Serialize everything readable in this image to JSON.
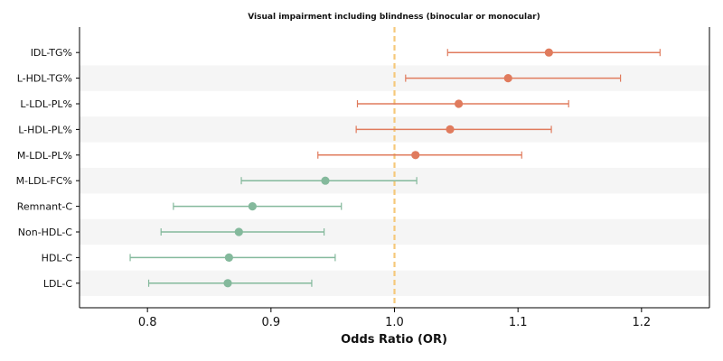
{
  "chart_data": {
    "type": "forest",
    "title": "Visual impairment including blindness (binocular or monocular)",
    "xlabel": "Odds Ratio (OR)",
    "xlim": [
      0.745,
      1.255
    ],
    "xticks": [
      0.8,
      0.9,
      1.0,
      1.1,
      1.2
    ],
    "xtick_labels": [
      "0.8",
      "0.9",
      "1.0",
      "1.1",
      "1.2"
    ],
    "reference_line": 1.0,
    "reference_color": "#f5c87a",
    "colors": {
      "positive": "#e07b5d",
      "negative": "#84b99c",
      "band": "#f5f5f5"
    },
    "rows": [
      {
        "label": "IDL-TG%",
        "or": 1.125,
        "lo": 1.043,
        "hi": 1.215
      },
      {
        "label": "L-HDL-TG%",
        "or": 1.092,
        "lo": 1.009,
        "hi": 1.183
      },
      {
        "label": "L-LDL-PL%",
        "or": 1.052,
        "lo": 0.97,
        "hi": 1.141
      },
      {
        "label": "L-HDL-PL%",
        "or": 1.045,
        "lo": 0.969,
        "hi": 1.127
      },
      {
        "label": "M-LDL-PL%",
        "or": 1.017,
        "lo": 0.938,
        "hi": 1.103
      },
      {
        "label": "M-LDL-FC%",
        "or": 0.944,
        "lo": 0.876,
        "hi": 1.018
      },
      {
        "label": "Remnant-C",
        "or": 0.885,
        "lo": 0.821,
        "hi": 0.957
      },
      {
        "label": "Non-HDL-C",
        "or": 0.874,
        "lo": 0.811,
        "hi": 0.943
      },
      {
        "label": "HDL-C",
        "or": 0.866,
        "lo": 0.786,
        "hi": 0.952
      },
      {
        "label": "LDL-C",
        "or": 0.865,
        "lo": 0.801,
        "hi": 0.933
      }
    ]
  }
}
